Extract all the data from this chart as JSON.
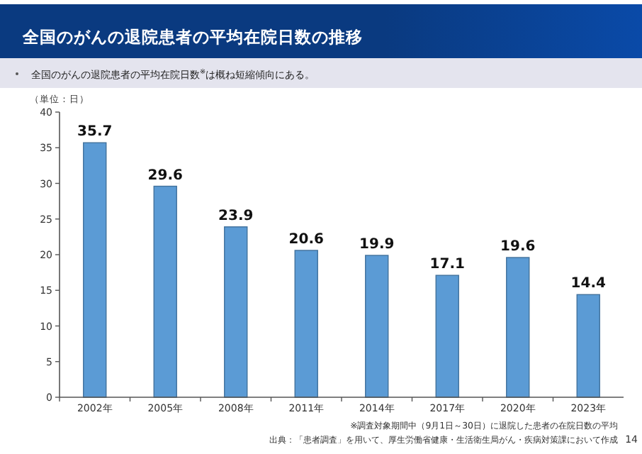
{
  "chart_data": {
    "type": "bar",
    "title": "全国のがんの退院患者の平均在院日数の推移",
    "subtitle": "全国のがんの退院患者の平均在院日数$^{※}$は概ね短縮傾向にある。",
    "ylabel": "（単位：日）",
    "categories": [
      "2002年",
      "2005年",
      "2008年",
      "2011年",
      "2014年",
      "2017年",
      "2020年",
      "2023年"
    ],
    "values": [
      35.7,
      29.6,
      23.9,
      20.6,
      19.9,
      17.1,
      19.6,
      14.4
    ],
    "color": "#5b9bd5",
    "data_labels": true,
    "ylim": [
      0,
      40
    ],
    "yticks": [
      0,
      5,
      10,
      15,
      20,
      25,
      30,
      35,
      40
    ],
    "grid": false,
    "annotations": [
      "※調査対象期間中（9月1日～30日）に退院した患者の在院日数の平均",
      "出典：「患者調査」を用いて、厚生労働省健康・生活衛生局がん・疾病対策課において作成",
      "14"
    ]
  }
}
